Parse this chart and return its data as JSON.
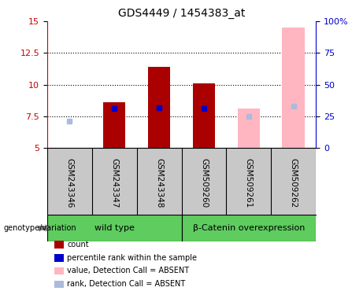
{
  "title": "GDS4449 / 1454383_at",
  "samples": [
    "GSM243346",
    "GSM243347",
    "GSM243348",
    "GSM509260",
    "GSM509261",
    "GSM509262"
  ],
  "count_values": [
    5.0,
    8.6,
    11.4,
    10.1,
    null,
    null
  ],
  "rank_values": [
    null,
    8.1,
    8.2,
    8.1,
    null,
    null
  ],
  "absent_count_values": [
    null,
    null,
    null,
    null,
    8.1,
    14.5
  ],
  "absent_rank_values": [
    7.1,
    null,
    null,
    null,
    7.5,
    8.3
  ],
  "ylim_left": [
    5,
    15
  ],
  "ylim_right": [
    0,
    100
  ],
  "yticks_left": [
    5,
    7.5,
    10,
    12.5,
    15
  ],
  "yticks_right": [
    0,
    25,
    50,
    75,
    100
  ],
  "ytick_labels_left": [
    "5",
    "7.5",
    "10",
    "12.5",
    "15"
  ],
  "ytick_labels_right": [
    "0",
    "25",
    "50",
    "75",
    "100%"
  ],
  "genotype_groups": [
    {
      "label": "wild type",
      "start": 0,
      "end": 3,
      "color": "#5ECC5E"
    },
    {
      "label": "β-Catenin overexpression",
      "start": 3,
      "end": 6,
      "color": "#5ECC5E"
    }
  ],
  "bar_width": 0.5,
  "count_color": "#AA0000",
  "rank_color": "#0000CC",
  "absent_count_color": "#FFB6C1",
  "absent_rank_color": "#AABBDD",
  "bar_bottom": 5,
  "background_label": "#C8C8C8",
  "left_axis_color": "#CC0000",
  "right_axis_color": "#0000CC",
  "legend_items": [
    {
      "color": "#AA0000",
      "label": "count"
    },
    {
      "color": "#0000CC",
      "label": "percentile rank within the sample"
    },
    {
      "color": "#FFB6C1",
      "label": "value, Detection Call = ABSENT"
    },
    {
      "color": "#AABBDD",
      "label": "rank, Detection Call = ABSENT"
    }
  ]
}
